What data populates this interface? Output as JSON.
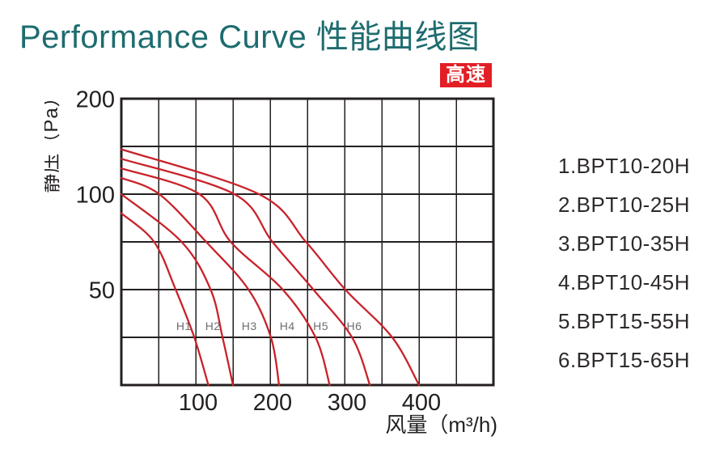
{
  "title": "Performance Curve 性能曲线图",
  "badge": {
    "label": "高速"
  },
  "legend": {
    "items": [
      "1.BPT10-20H",
      "2.BPT10-25H",
      "3.BPT10-35H",
      "4.BPT10-45H",
      "5.BPT15-55H",
      "6.BPT15-65H"
    ]
  },
  "chart_data": {
    "type": "line",
    "title": "Performance Curve 性能曲线图",
    "xlabel": "风量（m³/h)",
    "ylabel": "静压（Pa）",
    "x_range": [
      0,
      500
    ],
    "x_grid_step": 50,
    "x_ticks": [
      100,
      200,
      300,
      400
    ],
    "y_grid_values": [
      200,
      150,
      100,
      75,
      50,
      25,
      0
    ],
    "y_ticks": [
      200,
      100,
      50
    ],
    "grid": true,
    "legend_position": "right",
    "curve_label_pa": 31,
    "series": [
      {
        "name": "H1",
        "label_x": 84,
        "points": [
          [
            0,
            90
          ],
          [
            44,
            75
          ],
          [
            73,
            50
          ],
          [
            98,
            25
          ],
          [
            117,
            0
          ]
        ]
      },
      {
        "name": "H2",
        "label_x": 123,
        "points": [
          [
            0,
            100
          ],
          [
            81,
            75
          ],
          [
            120,
            50
          ],
          [
            136,
            25
          ],
          [
            150,
            0
          ]
        ]
      },
      {
        "name": "H3",
        "label_x": 172,
        "points": [
          [
            0,
            117
          ],
          [
            51,
            100
          ],
          [
            114,
            75
          ],
          [
            171,
            50
          ],
          [
            201,
            25
          ],
          [
            212,
            0
          ]
        ]
      },
      {
        "name": "H4",
        "label_x": 223,
        "points": [
          [
            0,
            127
          ],
          [
            105,
            100
          ],
          [
            147,
            75
          ],
          [
            217,
            50
          ],
          [
            261,
            25
          ],
          [
            280,
            0
          ]
        ]
      },
      {
        "name": "H5",
        "label_x": 268,
        "points": [
          [
            0,
            137
          ],
          [
            152,
            100
          ],
          [
            203,
            75
          ],
          [
            258,
            50
          ],
          [
            310,
            25
          ],
          [
            334,
            0
          ]
        ]
      },
      {
        "name": "H6",
        "label_x": 313,
        "points": [
          [
            0,
            147
          ],
          [
            185,
            100
          ],
          [
            248,
            75
          ],
          [
            301,
            50
          ],
          [
            364,
            25
          ],
          [
            400,
            0
          ]
        ]
      }
    ]
  },
  "colors": {
    "title": "#1e6c6f",
    "badge_bg": "#e31e24",
    "badge_fg": "#ffffff",
    "grid": "#231f20",
    "curve": "#c9222a",
    "curve_label": "#6d6e70",
    "text": "#231f20"
  }
}
